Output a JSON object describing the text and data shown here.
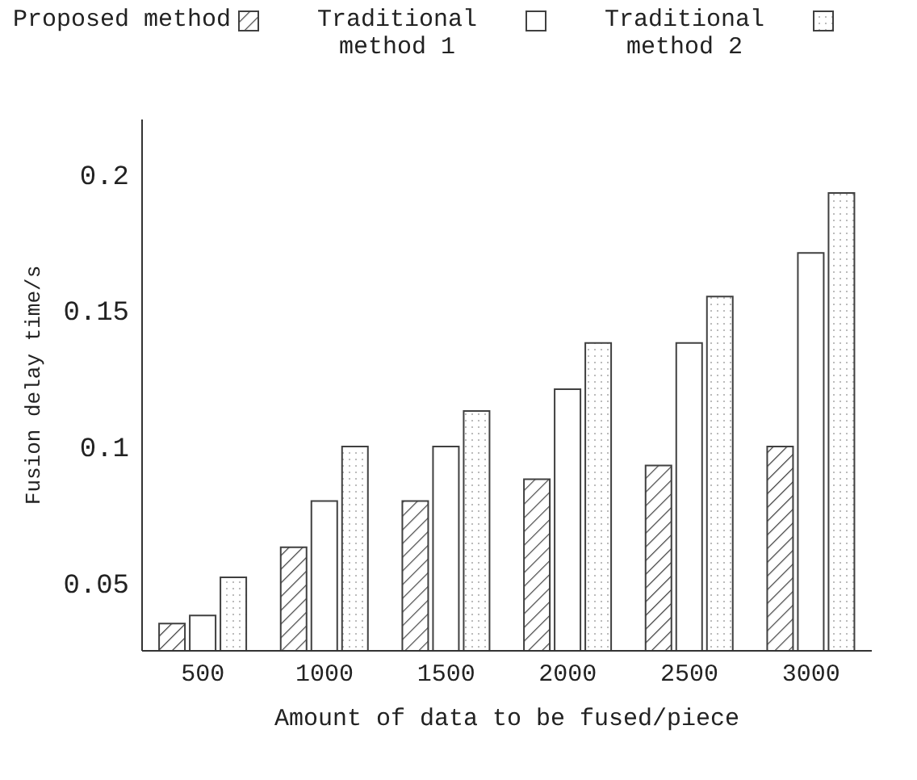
{
  "chart_data": {
    "type": "bar",
    "xlabel": "Amount of data to be fused/piece",
    "ylabel": "Fusion delay time/s",
    "categories": [
      "500",
      "1000",
      "1500",
      "2000",
      "2500",
      "3000"
    ],
    "series": [
      {
        "name": "Proposed method",
        "color": "#404040",
        "values": [
          0.035,
          0.063,
          0.08,
          0.088,
          0.093,
          0.1
        ]
      },
      {
        "name": "Traditional method 1",
        "color": "#404040",
        "values": [
          0.038,
          0.08,
          0.1,
          0.121,
          0.138,
          0.171
        ]
      },
      {
        "name": "Traditional method 2",
        "color": "#404040",
        "values": [
          0.052,
          0.1,
          0.113,
          0.138,
          0.155,
          0.193
        ]
      }
    ],
    "ylim": [
      0.025,
      0.22
    ],
    "yticks": [
      0.05,
      0.1,
      0.15,
      0.2
    ],
    "grid": false,
    "legend": "top"
  }
}
